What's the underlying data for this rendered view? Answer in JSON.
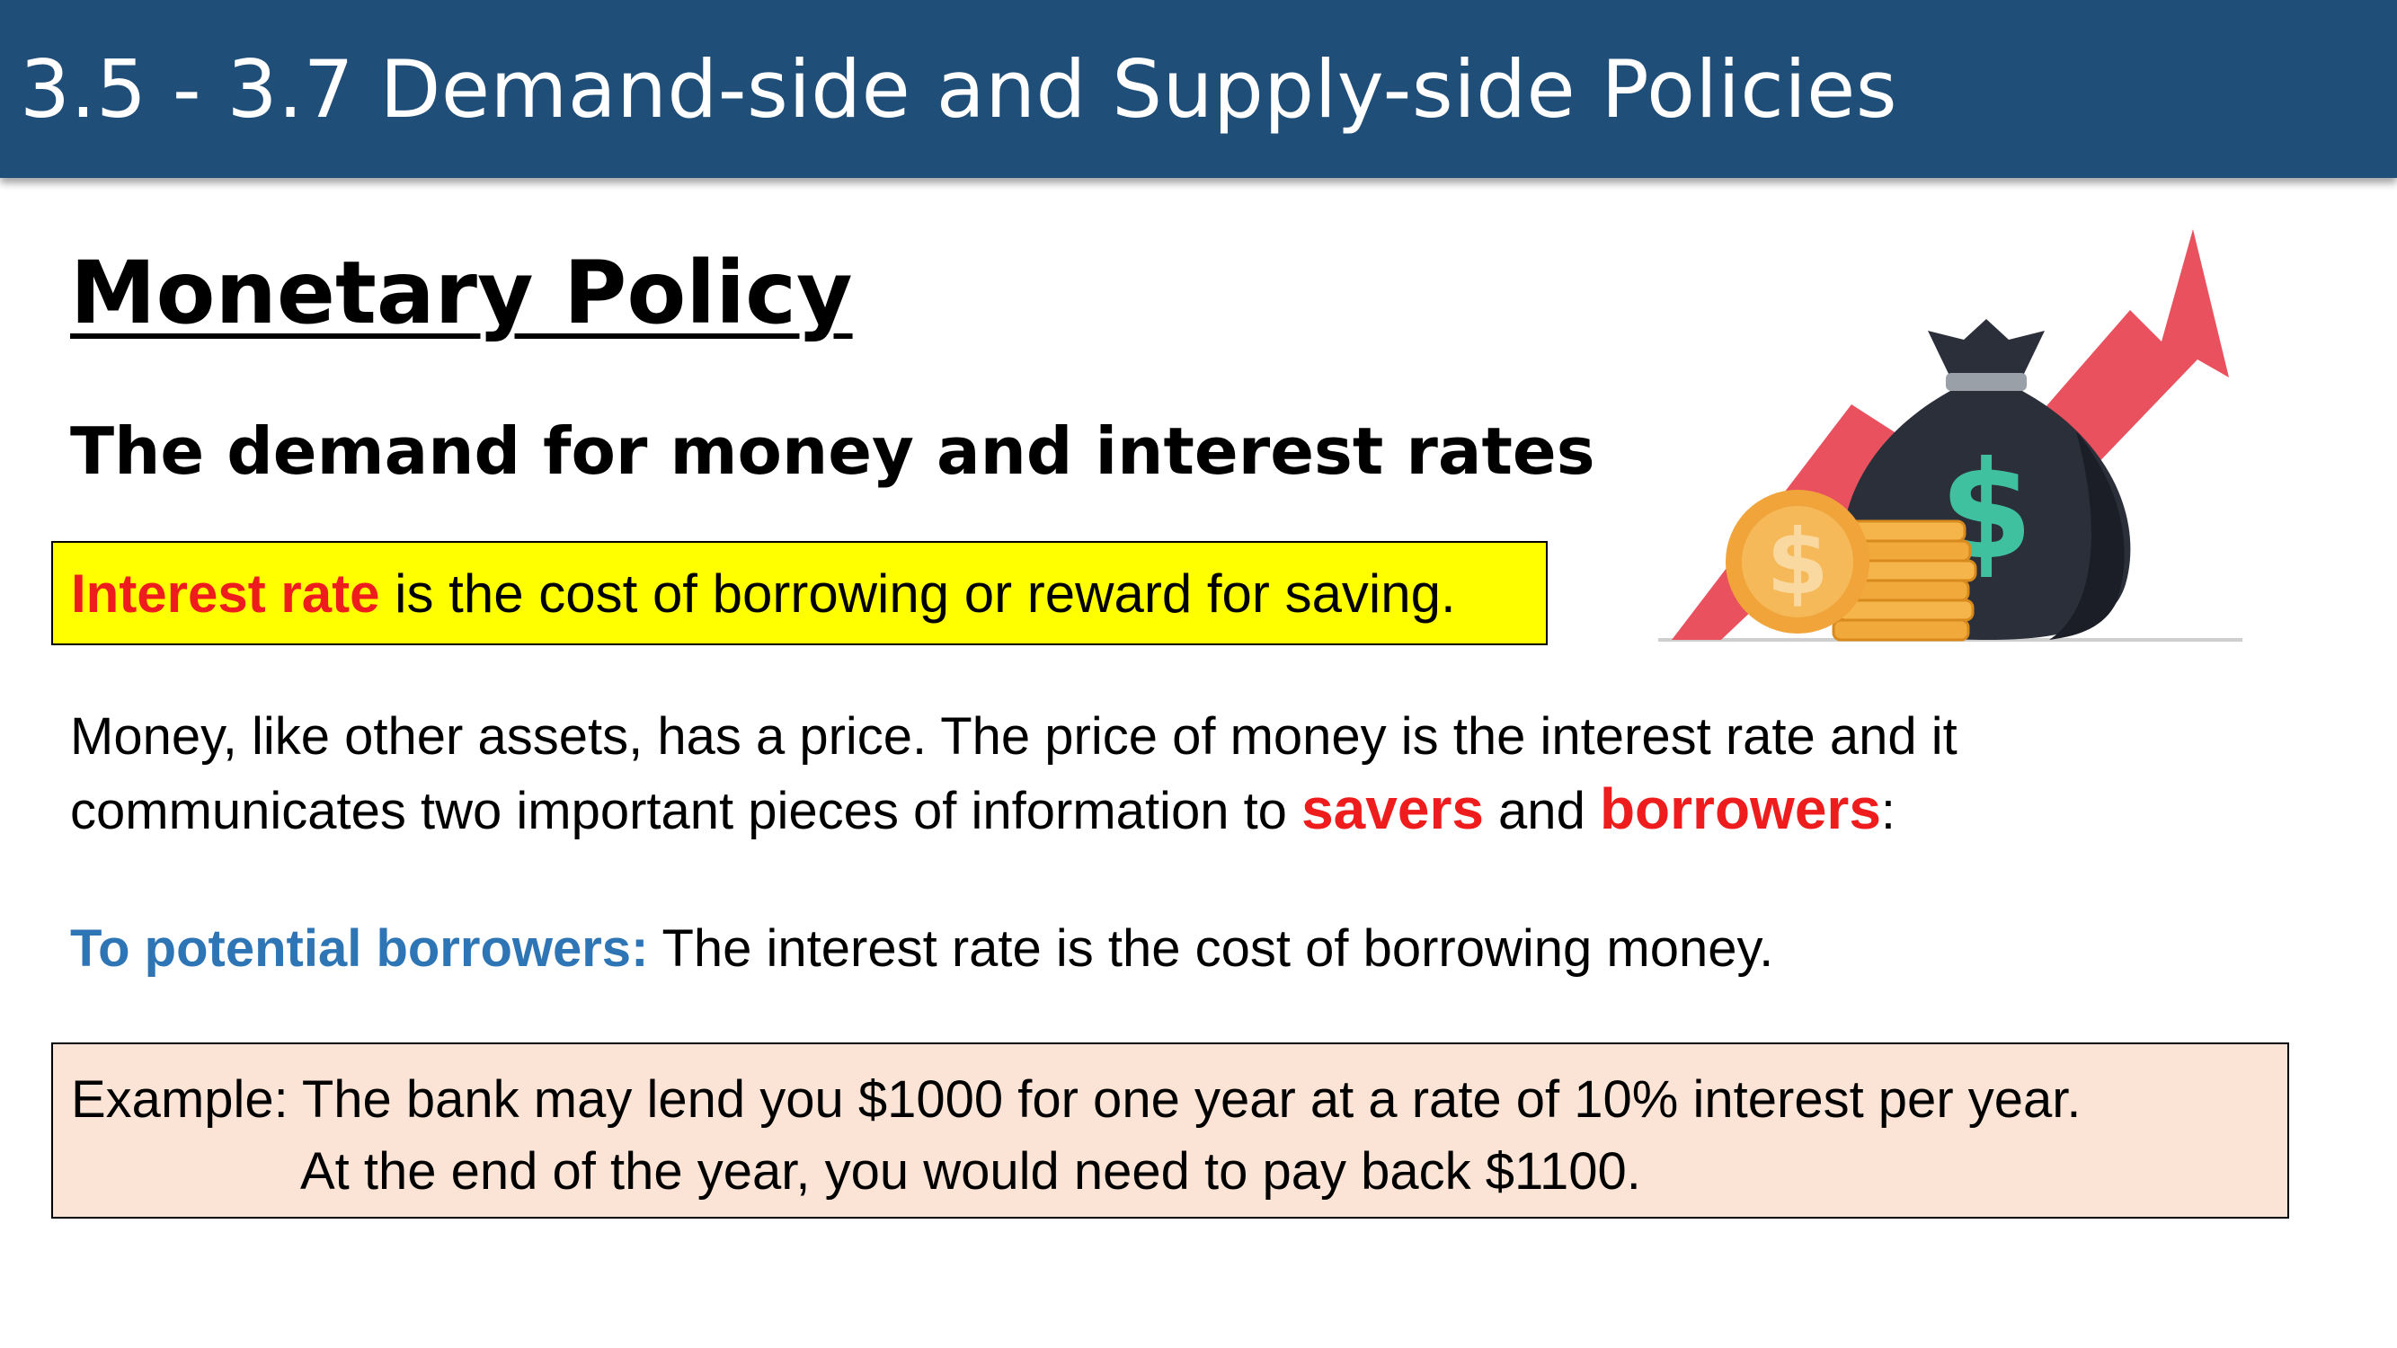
{
  "header": {
    "title": "3.5 - 3.7 Demand-side and Supply-side Policies"
  },
  "section": {
    "title": "Monetary Policy",
    "subtitle": "The demand for money and interest rates"
  },
  "definition": {
    "term": "Interest rate",
    "text": " is the cost of borrowing or reward for saving."
  },
  "paragraph": {
    "line1": "Money, like other assets, has a price. The price of money is the interest rate and it",
    "line2_start": "communicates two important pieces of information to ",
    "savers": "savers",
    "and": " and ",
    "borrowers": "borrowers",
    "colon": ":"
  },
  "borrowers_note": {
    "label": "To potential borrowers:",
    "text": " The interest rate is the cost of borrowing money."
  },
  "example": {
    "line1": "Example: The bank may lend you $1000 for one year at a rate of 10% interest per year.",
    "line2": "At the end of the year, you would need to pay back $1100."
  },
  "colors": {
    "header": "#1f4e79",
    "highlight": "#ffff00",
    "accent_red": "#ee1c1c",
    "accent_blue": "#2e75b6",
    "example_bg": "#fbe4d5"
  },
  "graphic": {
    "icons": [
      "rising-arrow-icon",
      "money-bag-icon",
      "dollar-coin-icon",
      "coin-stack-icon"
    ],
    "symbol": "$"
  }
}
